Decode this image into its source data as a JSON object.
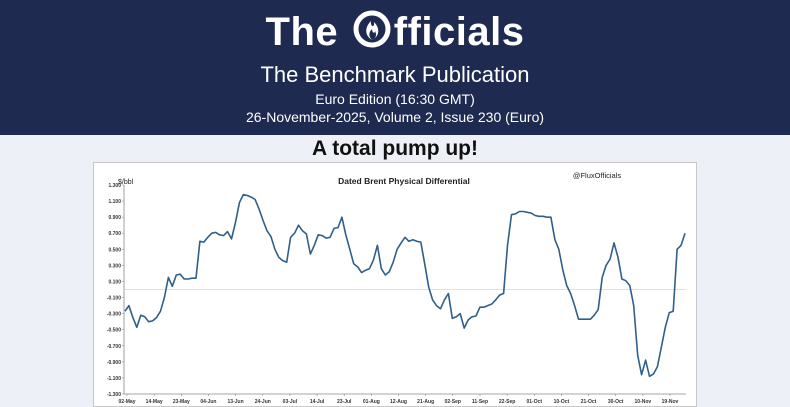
{
  "header": {
    "logo_text_left": "The ",
    "logo_text_right": "fficials",
    "publication_title": "The Benchmark Publication",
    "edition": "Euro Edition (16:30 GMT)",
    "issue_line": "26-November-2025, Volume 2, Issue 230 (Euro)",
    "background_color": "#1e2a4f"
  },
  "headline": "A total pump up!",
  "chart_data": {
    "type": "line",
    "title": "Dated Brent Physical Differential",
    "ylabel": "$/bbl",
    "watermark": "@FluxOfficials",
    "ylim": [
      -1.3,
      1.3
    ],
    "yticks": [
      "1.300",
      "1.100",
      "0.900",
      "0.700",
      "0.500",
      "0.300",
      "0.100",
      "-0.100",
      "-0.300",
      "-0.500",
      "-0.700",
      "-0.900",
      "-1.100",
      "-1.300"
    ],
    "ytick_values": [
      1.3,
      1.1,
      0.9,
      0.7,
      0.5,
      0.3,
      0.1,
      -0.1,
      -0.3,
      -0.5,
      -0.7,
      -0.9,
      -1.1,
      -1.3
    ],
    "x_tick_labels": [
      "02-May",
      "14-May",
      "23-May",
      "04-Jun",
      "13-Jun",
      "24-Jun",
      "03-Jul",
      "14-Jul",
      "23-Jul",
      "01-Aug",
      "12-Aug",
      "21-Aug",
      "02-Sep",
      "11-Sep",
      "22-Sep",
      "01-Oct",
      "10-Oct",
      "21-Oct",
      "30-Oct",
      "10-Nov",
      "19-Nov"
    ],
    "zero_line": true,
    "grid": false,
    "line_color": "#2f5f8a",
    "series": [
      {
        "values": [
          -0.27,
          -0.2,
          -0.35,
          -0.47,
          -0.32,
          -0.34,
          -0.4,
          -0.39,
          -0.35,
          -0.27,
          -0.1,
          0.15,
          0.04,
          0.18,
          0.19,
          0.13,
          0.13,
          0.14,
          0.14,
          0.6,
          0.59,
          0.65,
          0.7,
          0.71,
          0.68,
          0.67,
          0.72,
          0.63,
          0.83,
          1.08,
          1.18,
          1.17,
          1.15,
          1.12,
          1.0,
          0.86,
          0.73,
          0.66,
          0.5,
          0.4,
          0.36,
          0.34,
          0.65,
          0.7,
          0.8,
          0.73,
          0.69,
          0.44,
          0.55,
          0.68,
          0.67,
          0.64,
          0.65,
          0.76,
          0.77,
          0.9,
          0.68,
          0.5,
          0.32,
          0.28,
          0.21,
          0.24,
          0.26,
          0.37,
          0.55,
          0.26,
          0.18,
          0.22,
          0.34,
          0.5,
          0.58,
          0.65,
          0.6,
          0.62,
          0.6,
          0.59,
          0.32,
          0.03,
          -0.13,
          -0.2,
          -0.24,
          -0.13,
          -0.05,
          -0.36,
          -0.34,
          -0.3,
          -0.48,
          -0.38,
          -0.34,
          -0.33,
          -0.22,
          -0.22,
          -0.2,
          -0.18,
          -0.13,
          -0.07,
          -0.05,
          0.55,
          0.93,
          0.94,
          0.97,
          0.97,
          0.96,
          0.95,
          0.92,
          0.91,
          0.91,
          0.9,
          0.9,
          0.62,
          0.5,
          0.25,
          0.05,
          -0.05,
          -0.2,
          -0.37,
          -0.37,
          -0.37,
          -0.37,
          -0.32,
          -0.25,
          0.15,
          0.3,
          0.38,
          0.58,
          0.4,
          0.13,
          0.11,
          0.05,
          -0.2,
          -0.82,
          -1.06,
          -0.88,
          -1.08,
          -1.05,
          -0.96,
          -0.72,
          -0.47,
          -0.29,
          -0.27,
          0.5,
          0.55,
          0.7
        ]
      }
    ]
  }
}
